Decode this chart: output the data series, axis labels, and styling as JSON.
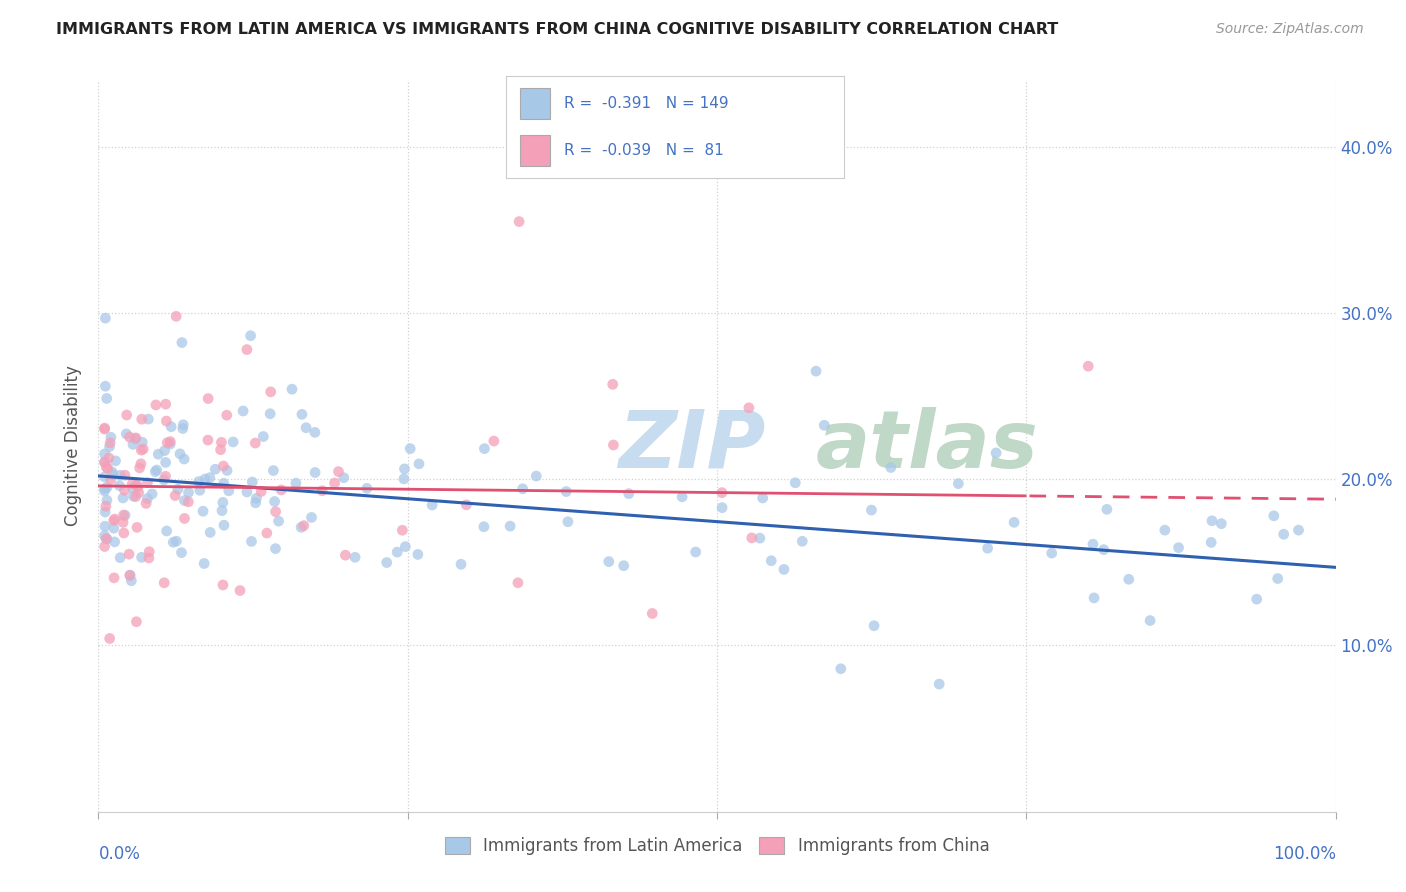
{
  "title": "IMMIGRANTS FROM LATIN AMERICA VS IMMIGRANTS FROM CHINA COGNITIVE DISABILITY CORRELATION CHART",
  "source": "Source: ZipAtlas.com",
  "ylabel": "Cognitive Disability",
  "xlim": [
    0.0,
    1.0
  ],
  "ylim": [
    0.0,
    0.44
  ],
  "y_ticks": [
    0.1,
    0.2,
    0.3,
    0.4
  ],
  "y_tick_labels_right": [
    "10.0%",
    "20.0%",
    "30.0%",
    "40.0%"
  ],
  "color_blue": "#A8C8E8",
  "color_pink": "#F4A0B8",
  "line_blue": "#3060B0",
  "line_pink": "#E05070",
  "axis_color": "#4472C4",
  "title_color": "#222222",
  "source_color": "#999999",
  "watermark_zip_color": "#C8DCF0",
  "watermark_atlas_color": "#C0D8C8",
  "legend_r1": "R =  -0.391",
  "legend_n1": "N = 149",
  "legend_r2": "R =  -0.039",
  "legend_n2": "N =  81",
  "blue_intercept": 0.202,
  "blue_slope": -0.055,
  "pink_intercept": 0.196,
  "pink_slope": -0.008,
  "seed": 17
}
